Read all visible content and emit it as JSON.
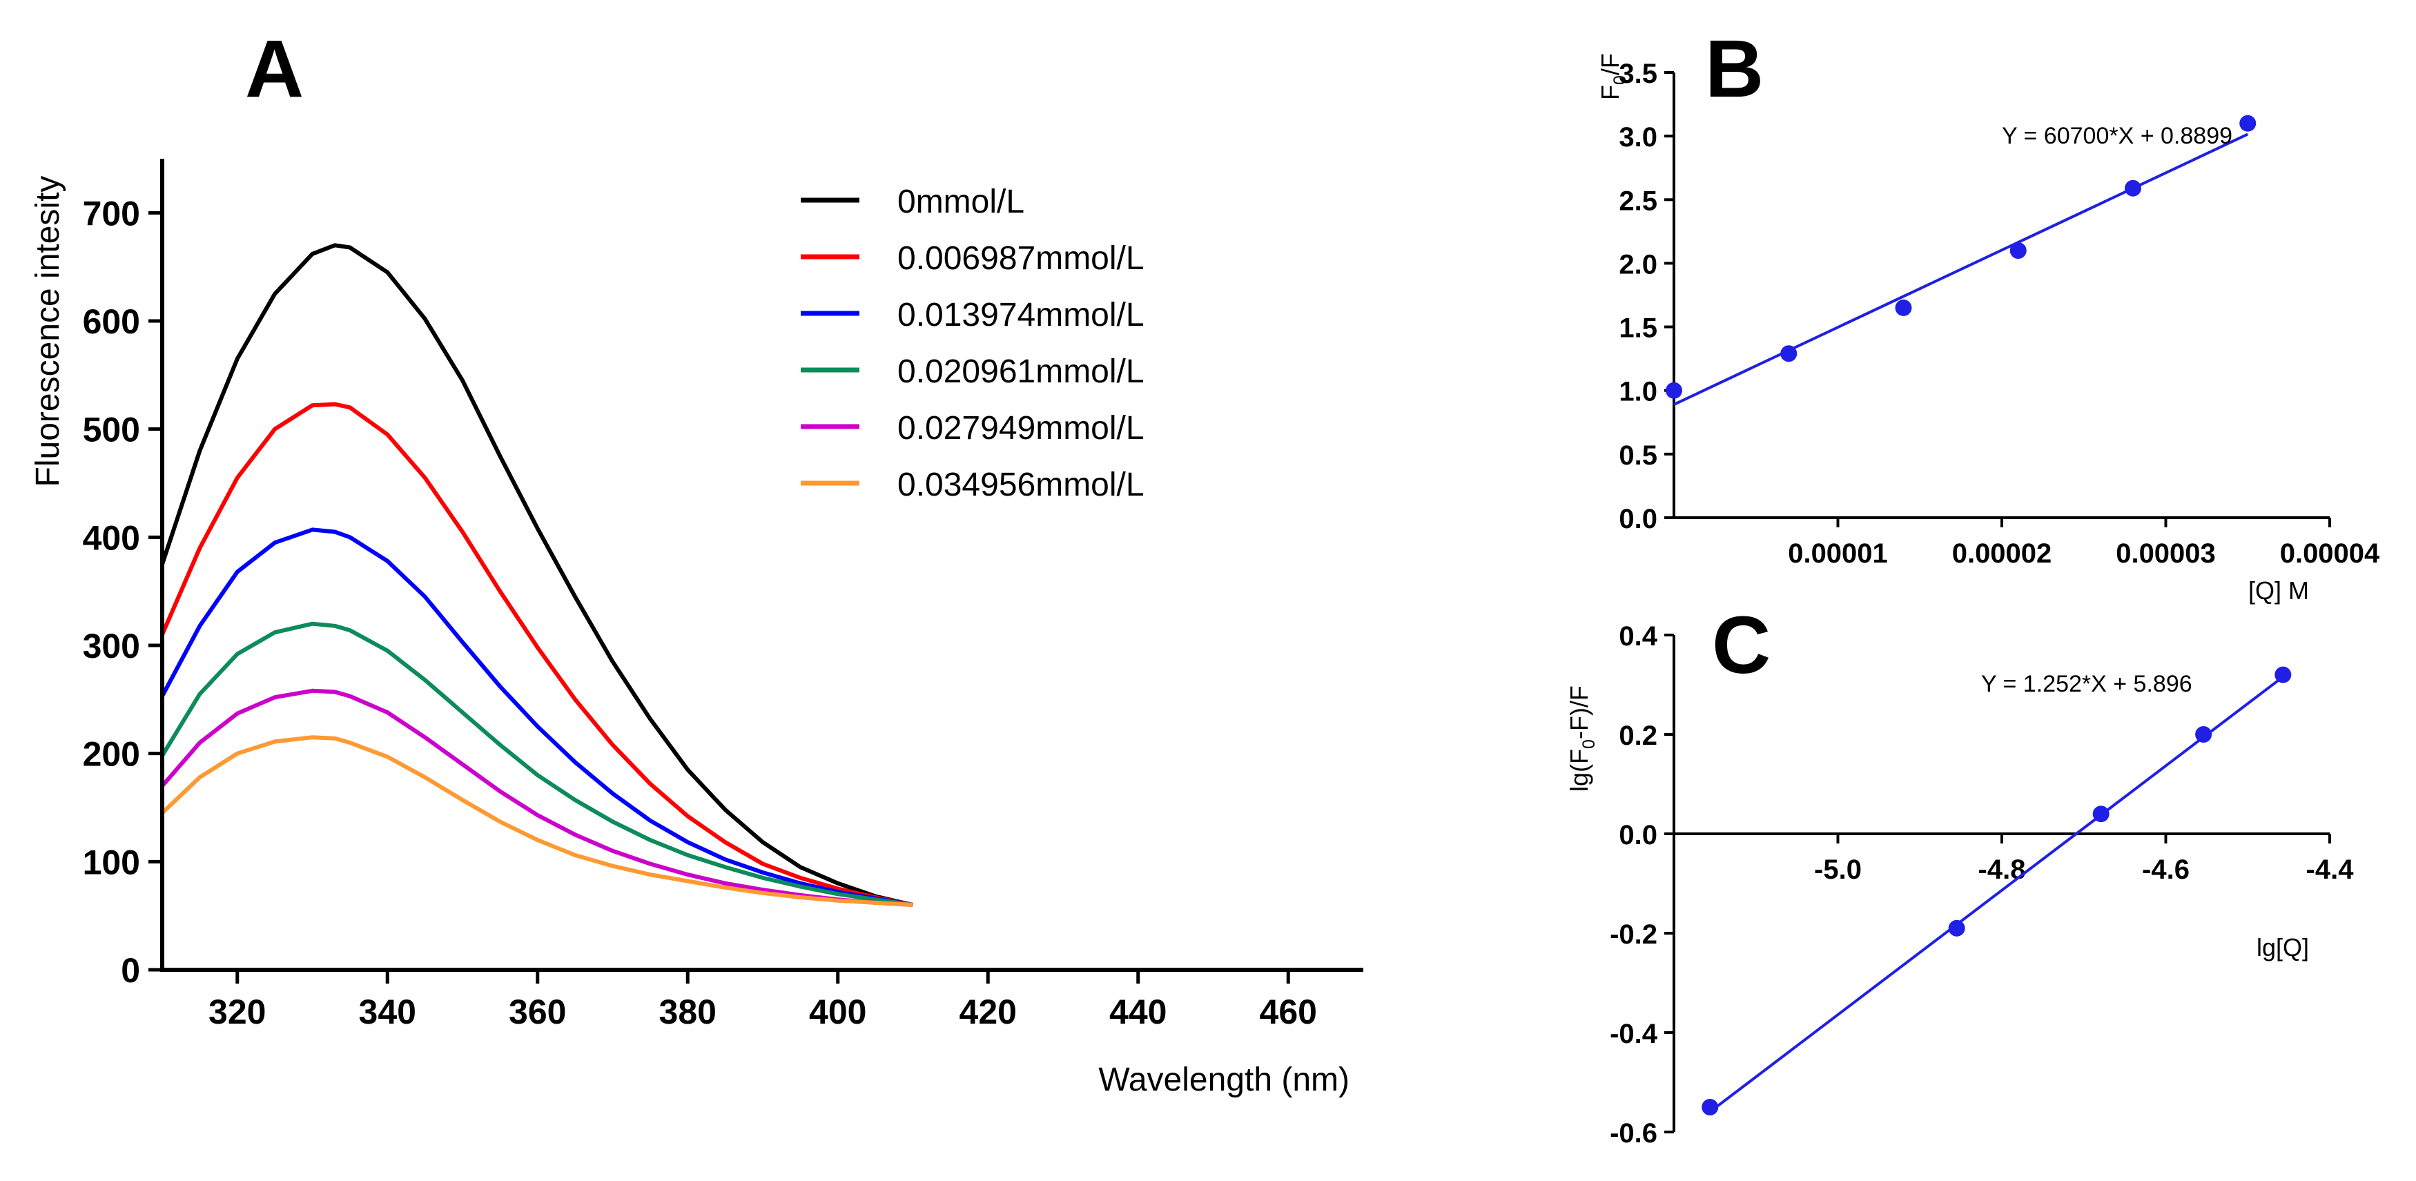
{
  "figure_labels": {
    "a": "A",
    "b": "B",
    "c": "C"
  },
  "chart_data": [
    {
      "id": "A",
      "type": "line",
      "title": "",
      "xlabel": "Wavelength (nm)",
      "ylabel": "Fluorescence intesity",
      "xlim": [
        310,
        470
      ],
      "ylim": [
        0,
        750
      ],
      "xticks": [
        "320",
        "340",
        "360",
        "380",
        "400",
        "420",
        "440",
        "460"
      ],
      "yticks": [
        "0",
        "100",
        "200",
        "300",
        "400",
        "500",
        "600",
        "700"
      ],
      "x": [
        310,
        315,
        320,
        325,
        330,
        333,
        335,
        340,
        345,
        350,
        355,
        360,
        365,
        370,
        375,
        380,
        385,
        390,
        395,
        400,
        405,
        410
      ],
      "series": [
        {
          "name": "0mmol/L",
          "color": "#000000",
          "values": [
            375,
            480,
            565,
            625,
            662,
            670,
            668,
            645,
            602,
            545,
            475,
            408,
            345,
            285,
            232,
            185,
            148,
            118,
            95,
            80,
            68,
            60
          ]
        },
        {
          "name": "0.006987mmol/L",
          "color": "#ff0000",
          "values": [
            310,
            390,
            455,
            500,
            522,
            523,
            520,
            495,
            455,
            405,
            350,
            298,
            250,
            208,
            172,
            142,
            118,
            98,
            85,
            75,
            67,
            60
          ]
        },
        {
          "name": "0.013974mmol/L",
          "color": "#0000ff",
          "values": [
            253,
            318,
            368,
            395,
            407,
            405,
            400,
            378,
            345,
            303,
            262,
            225,
            192,
            163,
            138,
            118,
            102,
            90,
            80,
            72,
            66,
            60
          ]
        },
        {
          "name": "0.020961mmol/L",
          "color": "#0c8c5a",
          "values": [
            198,
            255,
            292,
            312,
            320,
            318,
            314,
            295,
            268,
            238,
            208,
            180,
            157,
            137,
            120,
            106,
            95,
            85,
            77,
            70,
            65,
            60
          ]
        },
        {
          "name": "0.027949mmol/L",
          "color": "#cc00cc",
          "values": [
            170,
            210,
            237,
            252,
            258,
            257,
            253,
            238,
            215,
            190,
            165,
            143,
            125,
            110,
            98,
            88,
            80,
            74,
            69,
            65,
            62,
            60
          ]
        },
        {
          "name": "0.034956mmol/L",
          "color": "#ff9933",
          "values": [
            145,
            178,
            200,
            211,
            215,
            214,
            210,
            197,
            178,
            157,
            137,
            120,
            106,
            96,
            88,
            82,
            76,
            71,
            67,
            64,
            62,
            60
          ]
        }
      ]
    },
    {
      "id": "B",
      "type": "scatter",
      "title": "",
      "xlabel": "[Q] M",
      "ylabel_main": "F",
      "ylabel_sub": "0",
      "ylabel_tail": "/F",
      "xlim": [
        0,
        4e-05
      ],
      "ylim": [
        0,
        3.5
      ],
      "xticks": [
        "0.00001",
        "0.00002",
        "0.00003",
        "0.00004"
      ],
      "yticks": [
        "0.0",
        "0.5",
        "1.0",
        "1.5",
        "2.0",
        "2.5",
        "3.0",
        "3.5"
      ],
      "points": [
        {
          "x": 0,
          "y": 1.0
        },
        {
          "x": 7e-06,
          "y": 1.29
        },
        {
          "x": 1.4e-05,
          "y": 1.65
        },
        {
          "x": 2.1e-05,
          "y": 2.1
        },
        {
          "x": 2.8e-05,
          "y": 2.59
        },
        {
          "x": 3.5e-05,
          "y": 3.1
        }
      ],
      "fit": {
        "slope": 60700,
        "intercept": 0.8899,
        "x_range": [
          0,
          3.5e-05
        ]
      },
      "equation": "Y = 60700*X + 0.8899",
      "color": "#1f1fe6"
    },
    {
      "id": "C",
      "type": "scatter",
      "title": "",
      "xlabel": "lg[Q]",
      "ylabel_main": "lg(F",
      "ylabel_sub": "0",
      "ylabel_tail": "-F)/F",
      "xlim": [
        -5.2,
        -4.4
      ],
      "ylim": [
        -0.6,
        0.4
      ],
      "xticks": [
        "-5.0",
        "-4.8",
        "-4.6",
        "-4.4"
      ],
      "yticks": [
        "-0.6",
        "-0.4",
        "-0.2",
        "0.0",
        "0.2",
        "0.4"
      ],
      "points": [
        {
          "x": -5.156,
          "y": -0.55
        },
        {
          "x": -4.855,
          "y": -0.19
        },
        {
          "x": -4.679,
          "y": 0.04
        },
        {
          "x": -4.554,
          "y": 0.2
        },
        {
          "x": -4.457,
          "y": 0.32
        }
      ],
      "fit": {
        "slope": 1.252,
        "intercept": 5.896,
        "x_range": [
          -5.156,
          -4.457
        ]
      },
      "equation": "Y = 1.252*X + 5.896",
      "color": "#1f1fe6"
    }
  ]
}
